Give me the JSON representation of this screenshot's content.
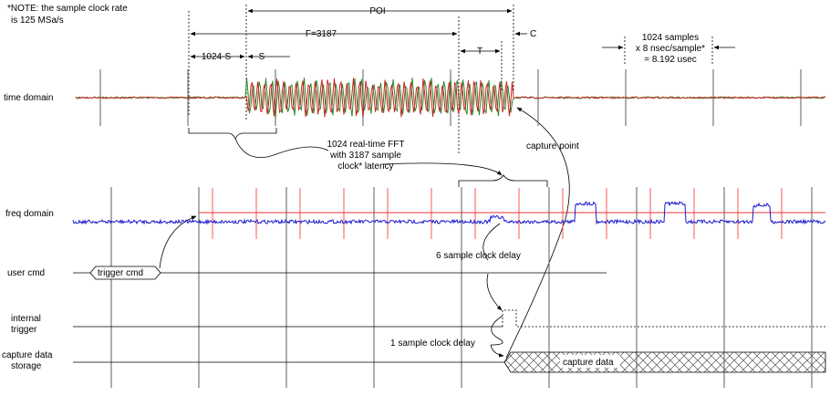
{
  "note": {
    "lines": [
      "*NOTE: the sample clock rate",
      "is 125 MSa/s"
    ]
  },
  "dimensions": {
    "poi": "POI",
    "f": "F=3187",
    "one_minus_s": "1024-S",
    "s": "S",
    "t": "T",
    "c": "C",
    "frame": [
      "1024 samples",
      "x 8 nsec/sample*",
      "= 8.192 usec"
    ]
  },
  "rows": {
    "time_domain": [
      "time domain"
    ],
    "freq_domain": [
      "freq domain"
    ],
    "user_cmd": [
      "user cmd"
    ],
    "internal_trigger": [
      "internal",
      "trigger"
    ],
    "capture_storage": [
      "capture data",
      "storage"
    ]
  },
  "annotations": {
    "fft": [
      "1024 real-time FFT",
      "with 3187 sample",
      "clock* latency"
    ],
    "capture_point": "capture point",
    "trigger_cmd": "trigger cmd",
    "six_delay": "6 sample clock delay",
    "one_delay": "1 sample clock delay",
    "capture_data": "capture data"
  }
}
